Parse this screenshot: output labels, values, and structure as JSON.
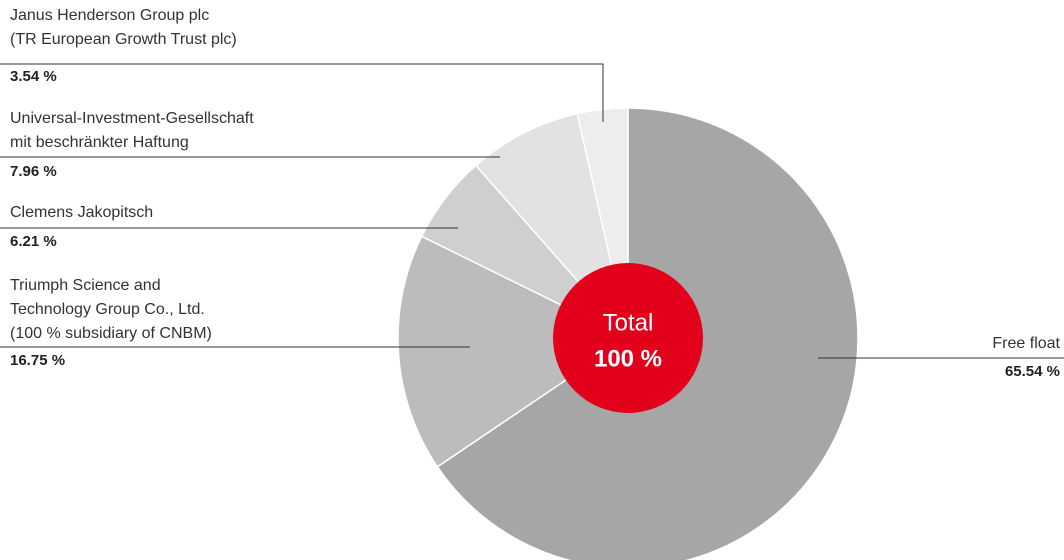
{
  "chart_data": {
    "type": "pie",
    "categories": [
      [
        "Free float"
      ],
      [
        "Triumph Science and",
        "Technology Group Co., Ltd.",
        "(100 % subsidiary of CNBM)"
      ],
      [
        "Clemens Jakopitsch"
      ],
      [
        "Universal-Investment-Gesellschaft",
        "mit beschränkter Haftung"
      ],
      [
        "Janus Henderson Group plc",
        "(TR European Growth Trust plc)"
      ]
    ],
    "values": [
      65.54,
      16.75,
      6.21,
      7.96,
      3.54
    ],
    "value_labels": [
      "65.54 %",
      "16.75 %",
      "6.21 %",
      "7.96 %",
      "3.54 %"
    ],
    "colors": [
      "#a6a6a6",
      "#bcbcbc",
      "#cfcfcf",
      "#e2e2e2",
      "#ededed"
    ],
    "center_title": "Total",
    "center_value": "100 %",
    "center_color": "#e2001a"
  }
}
